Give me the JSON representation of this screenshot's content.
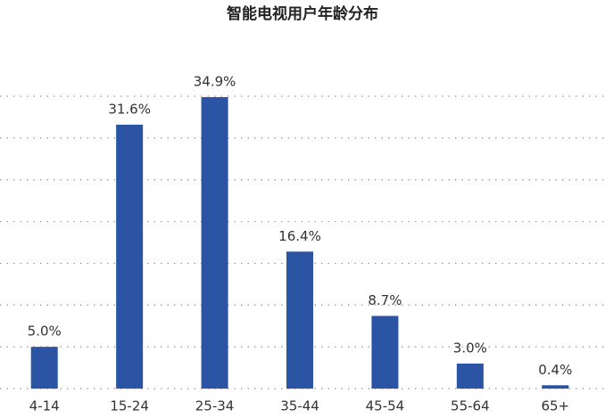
{
  "chart_data": {
    "type": "bar",
    "title": "智能电视用户年龄分布",
    "categories": [
      "4-14",
      "15-24",
      "25-34",
      "35-44",
      "45-54",
      "55-64",
      "65+"
    ],
    "values": [
      5.0,
      31.6,
      34.9,
      16.4,
      8.7,
      3.0,
      0.4
    ],
    "value_labels": [
      "5.0%",
      "31.6%",
      "34.9%",
      "16.4%",
      "8.7%",
      "3.0%",
      "0.4%"
    ],
    "color": "#2b54a4",
    "ylim": [
      0,
      35
    ],
    "yticks": [
      0,
      5,
      10,
      15,
      20,
      25,
      30,
      35
    ],
    "grid": true
  }
}
